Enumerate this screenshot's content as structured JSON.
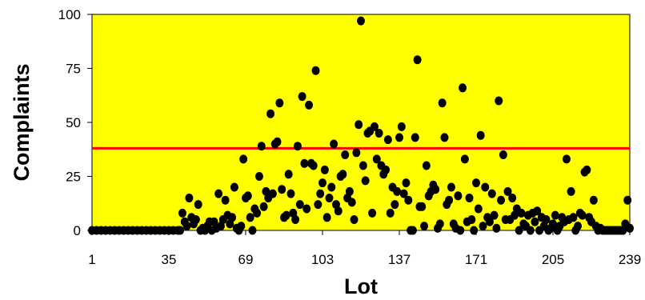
{
  "chart_data": {
    "type": "scatter",
    "title": "",
    "xlabel": "Lot",
    "ylabel": "Complaints",
    "xlim": [
      1,
      239
    ],
    "ylim": [
      0,
      100
    ],
    "x_ticks": [
      1,
      35,
      69,
      103,
      137,
      171,
      205,
      239
    ],
    "y_ticks": [
      0,
      25,
      50,
      75,
      100
    ],
    "grid": false,
    "plot_background": "#FFFF00",
    "marker_color": "#000000",
    "reference_line": {
      "y": 38,
      "color": "#FF0000"
    },
    "points": [
      [
        1,
        0
      ],
      [
        3,
        0
      ],
      [
        5,
        0
      ],
      [
        7,
        0
      ],
      [
        9,
        0
      ],
      [
        11,
        0
      ],
      [
        13,
        0
      ],
      [
        15,
        0
      ],
      [
        17,
        0
      ],
      [
        19,
        0
      ],
      [
        21,
        0
      ],
      [
        23,
        0
      ],
      [
        25,
        0
      ],
      [
        27,
        0
      ],
      [
        29,
        0
      ],
      [
        31,
        0
      ],
      [
        33,
        0
      ],
      [
        35,
        0
      ],
      [
        37,
        0
      ],
      [
        39,
        0
      ],
      [
        40,
        0
      ],
      [
        41,
        8
      ],
      [
        42,
        4
      ],
      [
        43,
        2
      ],
      [
        44,
        15
      ],
      [
        45,
        6
      ],
      [
        46,
        3
      ],
      [
        47,
        5
      ],
      [
        48,
        12
      ],
      [
        49,
        0
      ],
      [
        50,
        1
      ],
      [
        51,
        0
      ],
      [
        52,
        2
      ],
      [
        53,
        4
      ],
      [
        54,
        0
      ],
      [
        55,
        4
      ],
      [
        56,
        1
      ],
      [
        57,
        17
      ],
      [
        58,
        2
      ],
      [
        59,
        5
      ],
      [
        60,
        14
      ],
      [
        61,
        7
      ],
      [
        62,
        3
      ],
      [
        63,
        6
      ],
      [
        64,
        20
      ],
      [
        65,
        1
      ],
      [
        66,
        0
      ],
      [
        67,
        2
      ],
      [
        68,
        33
      ],
      [
        69,
        15
      ],
      [
        70,
        16
      ],
      [
        71,
        6
      ],
      [
        72,
        0
      ],
      [
        73,
        10
      ],
      [
        74,
        8
      ],
      [
        75,
        25
      ],
      [
        76,
        39
      ],
      [
        77,
        11
      ],
      [
        78,
        18
      ],
      [
        79,
        15
      ],
      [
        80,
        54
      ],
      [
        81,
        17
      ],
      [
        82,
        40
      ],
      [
        83,
        41
      ],
      [
        84,
        59
      ],
      [
        85,
        19
      ],
      [
        86,
        6
      ],
      [
        87,
        7
      ],
      [
        88,
        26
      ],
      [
        89,
        17
      ],
      [
        90,
        8
      ],
      [
        91,
        5
      ],
      [
        92,
        39
      ],
      [
        93,
        12
      ],
      [
        94,
        62
      ],
      [
        95,
        31
      ],
      [
        96,
        10
      ],
      [
        97,
        58
      ],
      [
        98,
        31
      ],
      [
        99,
        30
      ],
      [
        100,
        74
      ],
      [
        101,
        12
      ],
      [
        102,
        17
      ],
      [
        103,
        22
      ],
      [
        104,
        28
      ],
      [
        105,
        6
      ],
      [
        106,
        15
      ],
      [
        107,
        20
      ],
      [
        108,
        40
      ],
      [
        109,
        12
      ],
      [
        110,
        9
      ],
      [
        111,
        25
      ],
      [
        112,
        26
      ],
      [
        113,
        35
      ],
      [
        114,
        15
      ],
      [
        115,
        18
      ],
      [
        116,
        13
      ],
      [
        117,
        5
      ],
      [
        118,
        36
      ],
      [
        119,
        49
      ],
      [
        120,
        97
      ],
      [
        121,
        30
      ],
      [
        122,
        23
      ],
      [
        123,
        45
      ],
      [
        124,
        46
      ],
      [
        125,
        8
      ],
      [
        126,
        48
      ],
      [
        127,
        33
      ],
      [
        128,
        45
      ],
      [
        129,
        30
      ],
      [
        130,
        26
      ],
      [
        131,
        28
      ],
      [
        132,
        42
      ],
      [
        133,
        8
      ],
      [
        134,
        20
      ],
      [
        135,
        12
      ],
      [
        136,
        18
      ],
      [
        137,
        43
      ],
      [
        138,
        48
      ],
      [
        139,
        17
      ],
      [
        140,
        22
      ],
      [
        141,
        14
      ],
      [
        142,
        0
      ],
      [
        143,
        0
      ],
      [
        144,
        43
      ],
      [
        145,
        79
      ],
      [
        146,
        11
      ],
      [
        147,
        11
      ],
      [
        148,
        2
      ],
      [
        149,
        30
      ],
      [
        150,
        16
      ],
      [
        151,
        18
      ],
      [
        152,
        21
      ],
      [
        153,
        19
      ],
      [
        154,
        1
      ],
      [
        155,
        3
      ],
      [
        156,
        59
      ],
      [
        157,
        43
      ],
      [
        158,
        12
      ],
      [
        159,
        14
      ],
      [
        160,
        20
      ],
      [
        161,
        3
      ],
      [
        162,
        1
      ],
      [
        163,
        16
      ],
      [
        164,
        0
      ],
      [
        165,
        66
      ],
      [
        166,
        33
      ],
      [
        167,
        4
      ],
      [
        168,
        15
      ],
      [
        169,
        5
      ],
      [
        170,
        0
      ],
      [
        171,
        22
      ],
      [
        172,
        10
      ],
      [
        173,
        44
      ],
      [
        174,
        2
      ],
      [
        175,
        20
      ],
      [
        176,
        6
      ],
      [
        177,
        4
      ],
      [
        178,
        17
      ],
      [
        179,
        7
      ],
      [
        180,
        1
      ],
      [
        181,
        60
      ],
      [
        182,
        14
      ],
      [
        183,
        35
      ],
      [
        184,
        5
      ],
      [
        185,
        18
      ],
      [
        186,
        5
      ],
      [
        187,
        15
      ],
      [
        188,
        7
      ],
      [
        189,
        10
      ],
      [
        190,
        0
      ],
      [
        191,
        8
      ],
      [
        192,
        3
      ],
      [
        193,
        2
      ],
      [
        194,
        7
      ],
      [
        195,
        0
      ],
      [
        196,
        8
      ],
      [
        197,
        4
      ],
      [
        198,
        9
      ],
      [
        199,
        0
      ],
      [
        200,
        6
      ],
      [
        201,
        2
      ],
      [
        202,
        5
      ],
      [
        203,
        0
      ],
      [
        204,
        1
      ],
      [
        205,
        3
      ],
      [
        206,
        7
      ],
      [
        207,
        0
      ],
      [
        208,
        2
      ],
      [
        209,
        6
      ],
      [
        210,
        4
      ],
      [
        211,
        33
      ],
      [
        212,
        5
      ],
      [
        213,
        18
      ],
      [
        214,
        6
      ],
      [
        215,
        0
      ],
      [
        216,
        2
      ],
      [
        217,
        8
      ],
      [
        218,
        7
      ],
      [
        219,
        27
      ],
      [
        220,
        28
      ],
      [
        221,
        6
      ],
      [
        222,
        4
      ],
      [
        223,
        14
      ],
      [
        224,
        2
      ],
      [
        225,
        0
      ],
      [
        226,
        1
      ],
      [
        227,
        0
      ],
      [
        228,
        0
      ],
      [
        229,
        0
      ],
      [
        230,
        0
      ],
      [
        231,
        0
      ],
      [
        232,
        0
      ],
      [
        233,
        0
      ],
      [
        234,
        0
      ],
      [
        235,
        0
      ],
      [
        236,
        0
      ],
      [
        237,
        3
      ],
      [
        238,
        14
      ],
      [
        239,
        1
      ]
    ]
  }
}
